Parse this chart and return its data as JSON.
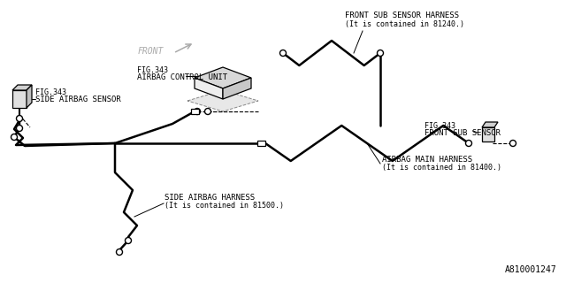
{
  "bg_color": "#ffffff",
  "line_color": "#000000",
  "part_number": "A810001247",
  "front_label": "FRONT",
  "labels": {
    "airbag_control": [
      "FIG.343",
      "AIRBAG CONTROL UNIT"
    ],
    "side_sensor": [
      "FIG.343",
      "SIDE AIRBAG SENSOR"
    ],
    "front_sub_sensor": [
      "FIG.343",
      "FRONT SUB SENSOR"
    ],
    "front_sub_harness": [
      "FRONT SUB SENSOR HARNESS",
      "(It is contained in 81240.)"
    ],
    "airbag_main_harness": [
      "AIRBAG MAIN HARNESS",
      "(It is contained in 81400.)"
    ],
    "side_airbag_harness": [
      "SIDE AIRBAG HARNESS",
      "(It is contained in 81500.)"
    ]
  },
  "gray_label": "#888888",
  "thin_gray": "#aaaaaa"
}
